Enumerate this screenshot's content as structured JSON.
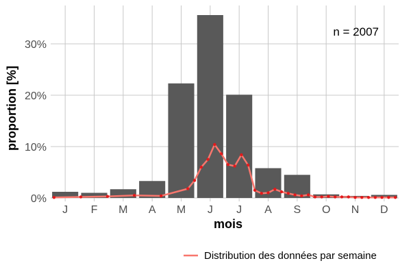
{
  "chart_data": {
    "type": "bar",
    "xlabel": "mois",
    "ylabel": "proportion [%]",
    "annotation": "n = 2007",
    "categories": [
      "J",
      "F",
      "M",
      "A",
      "M",
      "J",
      "J",
      "A",
      "S",
      "O",
      "N",
      "D"
    ],
    "ylim": [
      0,
      37
    ],
    "y_ticks": [
      0,
      10,
      20,
      30
    ],
    "y_tick_labels": [
      "0%",
      "10%",
      "20%",
      "30%"
    ],
    "grid": true,
    "legend_position": "bottom-right",
    "series": [
      {
        "type": "bar",
        "values": [
          1.2,
          1.0,
          1.7,
          3.3,
          22.3,
          35.6,
          20.1,
          5.8,
          4.5,
          0.7,
          0.4,
          0.6
        ],
        "color": "#595959"
      },
      {
        "type": "line",
        "name": "Distribution des données par semaine",
        "color": "#f8766d",
        "point_color": "#e31a1c",
        "x": [
          1,
          5,
          9,
          13,
          17,
          21,
          22,
          23,
          24,
          25,
          26,
          27,
          28,
          29,
          30,
          31,
          32,
          33,
          34,
          35,
          36,
          37,
          38,
          39,
          40,
          41,
          42,
          43,
          44,
          45,
          46,
          47,
          48,
          49,
          50,
          51,
          52
        ],
        "values": [
          0.1,
          0.2,
          0.3,
          0.5,
          0.4,
          1.8,
          3.4,
          6.0,
          7.5,
          10.4,
          8.6,
          6.5,
          6.2,
          8.4,
          6.4,
          1.5,
          0.9,
          1.0,
          1.7,
          1.2,
          0.9,
          0.6,
          0.4,
          0.6,
          0.2,
          0.2,
          0.3,
          0.2,
          0.2,
          0.2,
          0.1,
          0.1,
          0.1,
          0.1,
          0.1,
          0.1,
          0.1
        ]
      }
    ]
  }
}
